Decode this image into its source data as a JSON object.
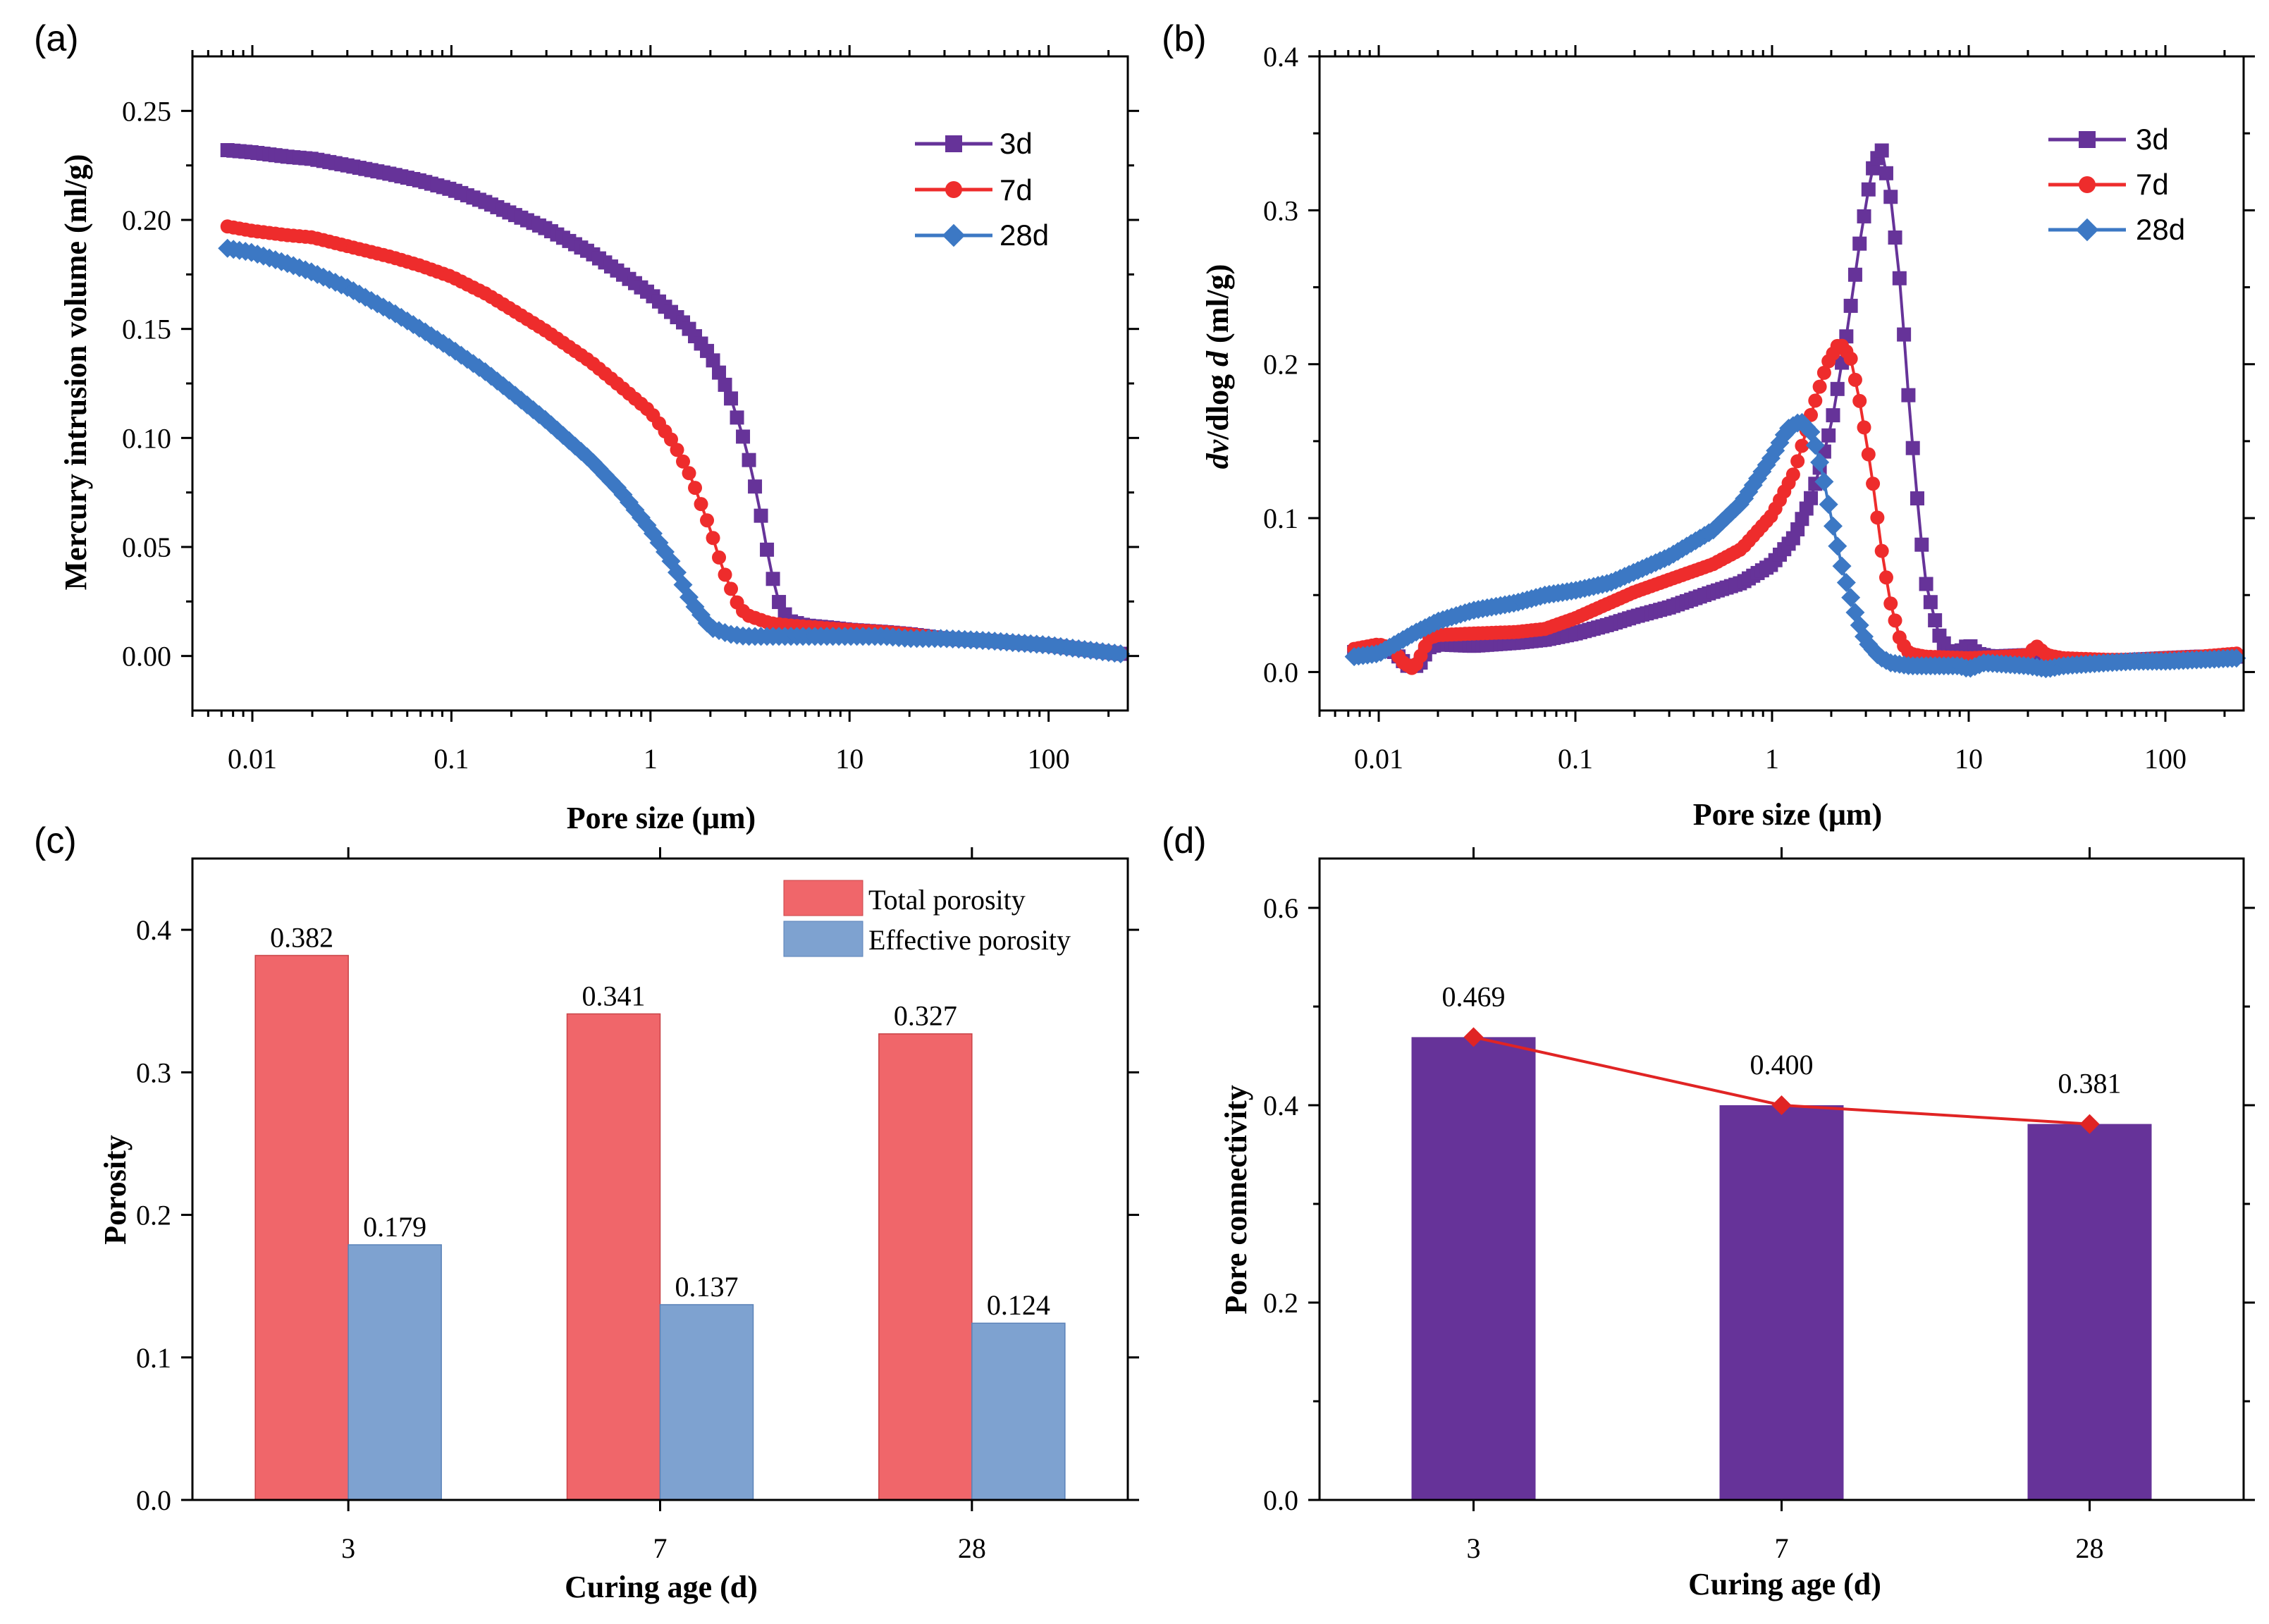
{
  "colors": {
    "d3": "#663399",
    "d7": "#ee2c2c",
    "d28": "#3c78c4",
    "total": "#f0666a",
    "effective": "#7ea2d0",
    "connectivity_bar": "#663399",
    "connectivity_line": "#e02424"
  },
  "chart_data": [
    {
      "panel": "(a)",
      "type": "line",
      "xscale": "log",
      "xlim": [
        0.005,
        250
      ],
      "ylim": [
        -0.025,
        0.275
      ],
      "xlabel": "Pore size (μm)",
      "ylabel": "Mercury intrusion volume (ml/g)",
      "xticks": [
        "0.01",
        "0.1",
        "1",
        "10",
        "100"
      ],
      "yticks": [
        "0.00",
        "0.05",
        "0.10",
        "0.15",
        "0.20",
        "0.25"
      ],
      "legend": [
        "3d",
        "7d",
        "28d"
      ],
      "series": [
        {
          "name": "3d",
          "marker": "square",
          "points": [
            [
              0.0075,
              0.232
            ],
            [
              0.01,
              0.231
            ],
            [
              0.015,
              0.229
            ],
            [
              0.02,
              0.228
            ],
            [
              0.03,
              0.225
            ],
            [
              0.05,
              0.221
            ],
            [
              0.07,
              0.218
            ],
            [
              0.1,
              0.214
            ],
            [
              0.15,
              0.208
            ],
            [
              0.2,
              0.203
            ],
            [
              0.3,
              0.196
            ],
            [
              0.5,
              0.185
            ],
            [
              0.7,
              0.176
            ],
            [
              1,
              0.166
            ],
            [
              1.5,
              0.152
            ],
            [
              2,
              0.138
            ],
            [
              2.5,
              0.12
            ],
            [
              3,
              0.097
            ],
            [
              3.5,
              0.07
            ],
            [
              4,
              0.04
            ],
            [
              4.5,
              0.022
            ],
            [
              5,
              0.016
            ],
            [
              6,
              0.014
            ],
            [
              8,
              0.013
            ],
            [
              10,
              0.012
            ],
            [
              15,
              0.011
            ],
            [
              20,
              0.01
            ],
            [
              30,
              0.008
            ],
            [
              50,
              0.007
            ],
            [
              70,
              0.006
            ],
            [
              100,
              0.005
            ],
            [
              150,
              0.003
            ],
            [
              230,
              0.001
            ]
          ]
        },
        {
          "name": "7d",
          "marker": "circle",
          "points": [
            [
              0.0075,
              0.197
            ],
            [
              0.01,
              0.195
            ],
            [
              0.015,
              0.193
            ],
            [
              0.02,
              0.192
            ],
            [
              0.03,
              0.188
            ],
            [
              0.05,
              0.183
            ],
            [
              0.07,
              0.179
            ],
            [
              0.1,
              0.174
            ],
            [
              0.15,
              0.166
            ],
            [
              0.2,
              0.159
            ],
            [
              0.3,
              0.149
            ],
            [
              0.5,
              0.135
            ],
            [
              0.7,
              0.124
            ],
            [
              1,
              0.112
            ],
            [
              1.3,
              0.098
            ],
            [
              1.6,
              0.082
            ],
            [
              2,
              0.058
            ],
            [
              2.3,
              0.04
            ],
            [
              2.7,
              0.025
            ],
            [
              3,
              0.019
            ],
            [
              4,
              0.015
            ],
            [
              5,
              0.014
            ],
            [
              7,
              0.013
            ],
            [
              10,
              0.012
            ],
            [
              15,
              0.011
            ],
            [
              20,
              0.01
            ],
            [
              30,
              0.008
            ],
            [
              50,
              0.007
            ],
            [
              70,
              0.006
            ],
            [
              100,
              0.005
            ],
            [
              150,
              0.003
            ],
            [
              230,
              0.001
            ]
          ]
        },
        {
          "name": "28d",
          "marker": "diamond",
          "points": [
            [
              0.0075,
              0.187
            ],
            [
              0.01,
              0.185
            ],
            [
              0.015,
              0.18
            ],
            [
              0.02,
              0.176
            ],
            [
              0.03,
              0.169
            ],
            [
              0.05,
              0.158
            ],
            [
              0.07,
              0.15
            ],
            [
              0.1,
              0.141
            ],
            [
              0.15,
              0.13
            ],
            [
              0.2,
              0.121
            ],
            [
              0.3,
              0.108
            ],
            [
              0.5,
              0.09
            ],
            [
              0.7,
              0.076
            ],
            [
              1,
              0.058
            ],
            [
              1.3,
              0.042
            ],
            [
              1.6,
              0.025
            ],
            [
              2,
              0.013
            ],
            [
              2.5,
              0.01
            ],
            [
              3,
              0.009
            ],
            [
              5,
              0.009
            ],
            [
              7,
              0.009
            ],
            [
              10,
              0.009
            ],
            [
              15,
              0.009
            ],
            [
              20,
              0.008
            ],
            [
              30,
              0.008
            ],
            [
              50,
              0.007
            ],
            [
              70,
              0.006
            ],
            [
              100,
              0.005
            ],
            [
              150,
              0.003
            ],
            [
              230,
              0.001
            ]
          ]
        }
      ]
    },
    {
      "panel": "(b)",
      "type": "line",
      "xscale": "log",
      "xlim": [
        0.005,
        250
      ],
      "ylim": [
        -0.025,
        0.4
      ],
      "xlabel": "Pore size (μm)",
      "ylabel": "dv/dlog d (ml/g)",
      "ylabel_parts": [
        "dv",
        "/dlog ",
        "d",
        " (ml/g)"
      ],
      "xticks": [
        "0.01",
        "0.1",
        "1",
        "10",
        "100"
      ],
      "yticks": [
        "0.0",
        "0.1",
        "0.2",
        "0.3",
        "0.4"
      ],
      "legend": [
        "3d",
        "7d",
        "28d"
      ],
      "series": [
        {
          "name": "3d",
          "marker": "square",
          "points": [
            [
              0.0075,
              0.013
            ],
            [
              0.01,
              0.015
            ],
            [
              0.012,
              0.013
            ],
            [
              0.014,
              0.004
            ],
            [
              0.016,
              0.004
            ],
            [
              0.018,
              0.016
            ],
            [
              0.02,
              0.018
            ],
            [
              0.03,
              0.017
            ],
            [
              0.05,
              0.019
            ],
            [
              0.07,
              0.021
            ],
            [
              0.1,
              0.025
            ],
            [
              0.15,
              0.031
            ],
            [
              0.2,
              0.036
            ],
            [
              0.3,
              0.042
            ],
            [
              0.5,
              0.052
            ],
            [
              0.7,
              0.058
            ],
            [
              1,
              0.07
            ],
            [
              1.3,
              0.088
            ],
            [
              1.6,
              0.115
            ],
            [
              2,
              0.16
            ],
            [
              2.4,
              0.22
            ],
            [
              2.8,
              0.28
            ],
            [
              3.2,
              0.325
            ],
            [
              3.6,
              0.34
            ],
            [
              4,
              0.31
            ],
            [
              4.5,
              0.25
            ],
            [
              5,
              0.17
            ],
            [
              5.5,
              0.11
            ],
            [
              6,
              0.06
            ],
            [
              7,
              0.025
            ],
            [
              8,
              0.012
            ],
            [
              9,
              0.013
            ],
            [
              10,
              0.018
            ],
            [
              11,
              0.012
            ],
            [
              13,
              0.01
            ],
            [
              20,
              0.011
            ],
            [
              30,
              0.007
            ],
            [
              50,
              0.007
            ],
            [
              70,
              0.008
            ],
            [
              100,
              0.009
            ],
            [
              150,
              0.01
            ],
            [
              230,
              0.01
            ]
          ]
        },
        {
          "name": "7d",
          "marker": "circle",
          "points": [
            [
              0.0075,
              0.015
            ],
            [
              0.01,
              0.018
            ],
            [
              0.012,
              0.015
            ],
            [
              0.013,
              0.007
            ],
            [
              0.015,
              0.002
            ],
            [
              0.016,
              0.008
            ],
            [
              0.018,
              0.022
            ],
            [
              0.02,
              0.024
            ],
            [
              0.03,
              0.025
            ],
            [
              0.05,
              0.026
            ],
            [
              0.07,
              0.028
            ],
            [
              0.1,
              0.035
            ],
            [
              0.15,
              0.045
            ],
            [
              0.2,
              0.052
            ],
            [
              0.3,
              0.06
            ],
            [
              0.5,
              0.07
            ],
            [
              0.7,
              0.08
            ],
            [
              1,
              0.102
            ],
            [
              1.3,
              0.13
            ],
            [
              1.6,
              0.17
            ],
            [
              1.9,
              0.2
            ],
            [
              2.2,
              0.214
            ],
            [
              2.5,
              0.205
            ],
            [
              2.8,
              0.175
            ],
            [
              3.2,
              0.13
            ],
            [
              3.6,
              0.08
            ],
            [
              4,
              0.045
            ],
            [
              4.5,
              0.02
            ],
            [
              5,
              0.012
            ],
            [
              6,
              0.01
            ],
            [
              10,
              0.009
            ],
            [
              15,
              0.01
            ],
            [
              20,
              0.011
            ],
            [
              22,
              0.017
            ],
            [
              25,
              0.011
            ],
            [
              30,
              0.009
            ],
            [
              50,
              0.008
            ],
            [
              70,
              0.008
            ],
            [
              100,
              0.009
            ],
            [
              150,
              0.01
            ],
            [
              230,
              0.012
            ]
          ]
        },
        {
          "name": "28d",
          "marker": "diamond",
          "points": [
            [
              0.0075,
              0.01
            ],
            [
              0.01,
              0.012
            ],
            [
              0.015,
              0.025
            ],
            [
              0.02,
              0.033
            ],
            [
              0.03,
              0.04
            ],
            [
              0.05,
              0.045
            ],
            [
              0.07,
              0.05
            ],
            [
              0.1,
              0.053
            ],
            [
              0.15,
              0.058
            ],
            [
              0.2,
              0.065
            ],
            [
              0.3,
              0.075
            ],
            [
              0.5,
              0.092
            ],
            [
              0.7,
              0.11
            ],
            [
              1,
              0.14
            ],
            [
              1.2,
              0.158
            ],
            [
              1.4,
              0.163
            ],
            [
              1.6,
              0.155
            ],
            [
              1.8,
              0.13
            ],
            [
              2,
              0.1
            ],
            [
              2.3,
              0.065
            ],
            [
              2.7,
              0.035
            ],
            [
              3,
              0.02
            ],
            [
              3.5,
              0.01
            ],
            [
              4,
              0.006
            ],
            [
              5,
              0.004
            ],
            [
              7,
              0.004
            ],
            [
              9,
              0.004
            ],
            [
              10,
              0.002
            ],
            [
              12,
              0.006
            ],
            [
              20,
              0.004
            ],
            [
              25,
              0.002
            ],
            [
              30,
              0.004
            ],
            [
              50,
              0.006
            ],
            [
              70,
              0.007
            ],
            [
              100,
              0.007
            ],
            [
              150,
              0.008
            ],
            [
              230,
              0.009
            ]
          ]
        }
      ]
    },
    {
      "panel": "(c)",
      "type": "bar",
      "categories": [
        "3",
        "7",
        "28"
      ],
      "xlabel": "Curing age (d)",
      "ylabel": "Porosity",
      "ylim": [
        0,
        0.45
      ],
      "yticks": [
        "0.0",
        "0.1",
        "0.2",
        "0.3",
        "0.4"
      ],
      "series": [
        {
          "name": "Total porosity",
          "values": [
            0.382,
            0.341,
            0.327
          ],
          "labels": [
            "0.382",
            "0.341",
            "0.327"
          ]
        },
        {
          "name": "Effective porosity",
          "values": [
            0.179,
            0.137,
            0.124
          ],
          "labels": [
            "0.179",
            "0.137",
            "0.124"
          ]
        }
      ]
    },
    {
      "panel": "(d)",
      "type": "bar",
      "categories": [
        "3",
        "7",
        "28"
      ],
      "xlabel": "Curing age (d)",
      "ylabel": "Pore connectivity",
      "ylim": [
        0,
        0.65
      ],
      "yticks": [
        "0.0",
        "0.2",
        "0.4",
        "0.6"
      ],
      "values": [
        0.469,
        0.4,
        0.381
      ],
      "labels": [
        "0.469",
        "0.400",
        "0.381"
      ]
    }
  ]
}
